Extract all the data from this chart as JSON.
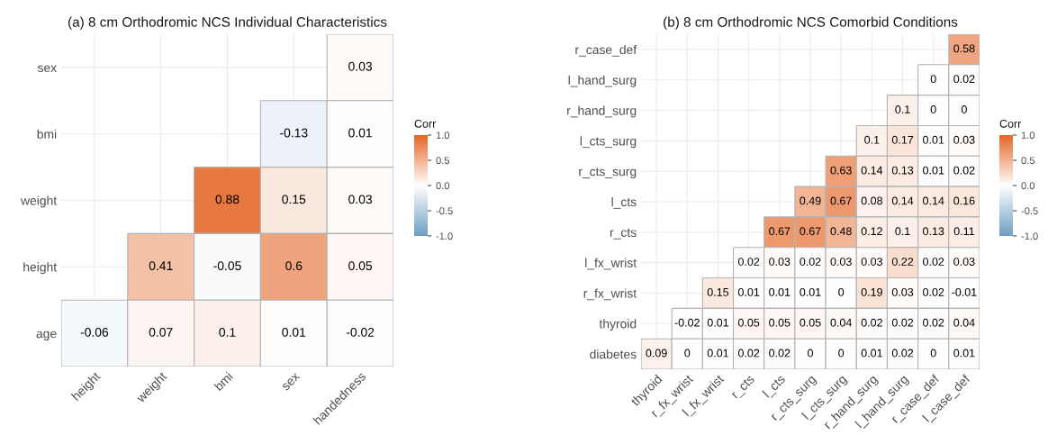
{
  "chart_data": [
    {
      "type": "heatmap",
      "title": "(a) 8 cm Orthodromic NCS Individual Characteristics",
      "clabel": "Corr",
      "categories": [
        "height",
        "weight",
        "bmi",
        "sex",
        "handedness"
      ],
      "y_categories": [
        "sex",
        "bmi",
        "weight",
        "height",
        "age"
      ],
      "cells": [
        [
          null,
          null,
          null,
          null,
          0.03
        ],
        [
          null,
          null,
          null,
          -0.13,
          0.01
        ],
        [
          null,
          null,
          0.88,
          0.15,
          0.03
        ],
        [
          null,
          0.41,
          -0.05,
          0.6,
          0.05
        ],
        [
          -0.06,
          0.07,
          0.1,
          0.01,
          -0.02
        ]
      ],
      "clim": [
        -1,
        1
      ],
      "cticks": [
        {
          "value": -1,
          "label": "-1.0"
        },
        {
          "value": -0.5,
          "label": "-0.5"
        },
        {
          "value": 0,
          "label": "0.0"
        },
        {
          "value": 0.5,
          "label": "0.5"
        },
        {
          "value": 1,
          "label": "1.0"
        }
      ],
      "colors": [
        "#6d9ec1",
        "#ffffff",
        "#e46726"
      ],
      "data_labels": true,
      "grid": true
    },
    {
      "type": "heatmap",
      "title": "(b) 8 cm Orthodromic NCS Comorbid Conditions",
      "clabel": "Corr",
      "categories": [
        "thyroid",
        "r_fx_wrist",
        "l_fx_wrist",
        "r_cts",
        "l_cts",
        "r_cts_surg",
        "l_cts_surg",
        "r_hand_surg",
        "l_hand_surg",
        "r_case_def",
        "l_case_def"
      ],
      "y_categories": [
        "r_case_def",
        "l_hand_surg",
        "r_hand_surg",
        "l_cts_surg",
        "r_cts_surg",
        "l_cts",
        "r_cts",
        "l_fx_wrist",
        "r_fx_wrist",
        "thyroid",
        "diabetes"
      ],
      "cells": [
        [
          null,
          null,
          null,
          null,
          null,
          null,
          null,
          null,
          null,
          null,
          0.58
        ],
        [
          null,
          null,
          null,
          null,
          null,
          null,
          null,
          null,
          null,
          0,
          0.02
        ],
        [
          null,
          null,
          null,
          null,
          null,
          null,
          null,
          null,
          0.1,
          0,
          0
        ],
        [
          null,
          null,
          null,
          null,
          null,
          null,
          null,
          0.1,
          0.17,
          0.01,
          0.03
        ],
        [
          null,
          null,
          null,
          null,
          null,
          null,
          0.63,
          0.14,
          0.13,
          0.01,
          0.02
        ],
        [
          null,
          null,
          null,
          null,
          null,
          0.49,
          0.67,
          0.08,
          0.14,
          0.14,
          0.16
        ],
        [
          null,
          null,
          null,
          null,
          0.67,
          0.67,
          0.48,
          0.12,
          0.1,
          0.13,
          0.11
        ],
        [
          null,
          null,
          null,
          0.02,
          0.03,
          0.02,
          0.03,
          0.03,
          0.22,
          0.02,
          0.03
        ],
        [
          null,
          null,
          0.15,
          0.01,
          0.01,
          0.01,
          0,
          0.19,
          0.03,
          0.02,
          -0.01
        ],
        [
          null,
          -0.02,
          0.01,
          0.05,
          0.05,
          0.05,
          0.04,
          0.02,
          0.02,
          0.02,
          0.04
        ],
        [
          0.09,
          0,
          0.01,
          0.02,
          0.02,
          0,
          0,
          0.01,
          0.02,
          0,
          0.01
        ]
      ],
      "clim": [
        -1,
        1
      ],
      "cticks": [
        {
          "value": -1,
          "label": "-1.0"
        },
        {
          "value": -0.5,
          "label": "-0.5"
        },
        {
          "value": 0,
          "label": "0.0"
        },
        {
          "value": 0.5,
          "label": "0.5"
        },
        {
          "value": 1,
          "label": "1.0"
        }
      ],
      "colors": [
        "#6d9ec1",
        "#ffffff",
        "#e46726"
      ],
      "data_labels": true,
      "grid": true
    }
  ]
}
